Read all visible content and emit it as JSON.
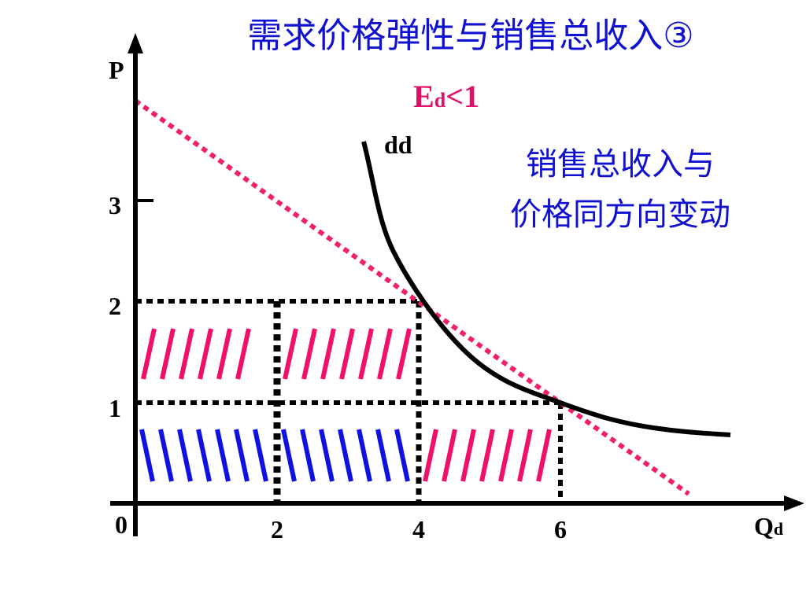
{
  "title": "需求价格弹性与销售总收入③",
  "elasticity": {
    "main": "E",
    "sub": "d",
    "rest": "<1"
  },
  "axes": {
    "y_label": "P",
    "x_label": {
      "main": "Q",
      "sub": "d"
    },
    "origin": "0",
    "y_ticks": [
      "1",
      "2",
      "3"
    ],
    "x_ticks": [
      "2",
      "4",
      "6"
    ]
  },
  "curve_label": "dd",
  "note": [
    "销售总收入与",
    "价格同方向变动"
  ]
}
